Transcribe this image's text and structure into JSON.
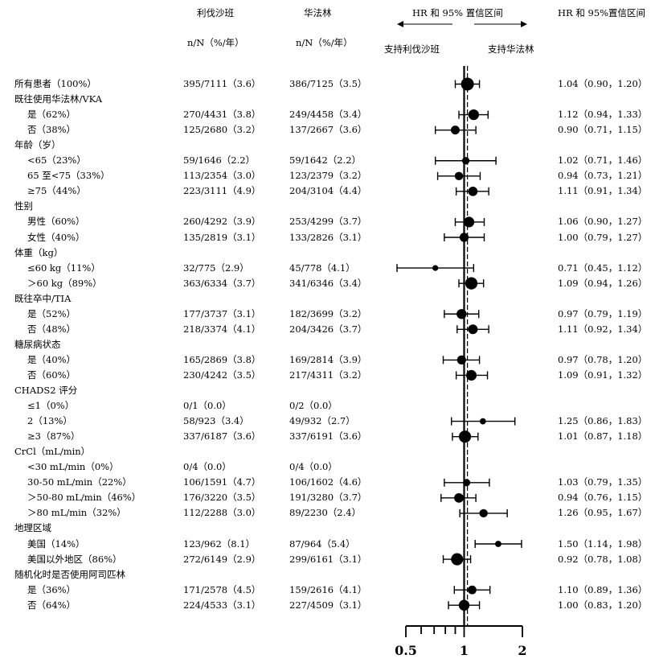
{
  "headers": {
    "rivaroxaban": "利伐沙班",
    "warfarin": "华法林",
    "nN_riva": "n/N（%/年）",
    "nN_warf": "n/N（%/年）",
    "hr_interval": "HR 和 95% 置信区间",
    "favors_riva": "支持利伐沙班",
    "favors_warf": "支持华法林",
    "hr_ci_col": "HR 和 95%置信区间"
  },
  "chart_data": {
    "type": "forest",
    "x_scale": "log",
    "xlim": [
      0.5,
      2
    ],
    "reference_value": 1,
    "overall_estimate": 1.04,
    "x_tick_labels": [
      "0.5",
      "1",
      "2"
    ],
    "rows": [
      {
        "label": "所有患者（100%）",
        "riva": "395/7111（3.6）",
        "warf": "386/7125（3.5）",
        "ci_text": "1.04（0.90，1.20）",
        "hr": 1.04,
        "lo": 0.9,
        "hi": 1.2,
        "weight": 1.0,
        "indent": false
      },
      {
        "label": "既往使用华法林/VKA",
        "indent": false
      },
      {
        "label": "是（62%）",
        "riva": "270/4431（3.8）",
        "warf": "249/4458（3.4）",
        "ci_text": "1.12（0.94，1.33）",
        "hr": 1.12,
        "lo": 0.94,
        "hi": 1.33,
        "weight": 0.62,
        "indent": true
      },
      {
        "label": "否（38%）",
        "riva": "125/2680（3.2）",
        "warf": "137/2667（3.6）",
        "ci_text": "0.90（0.71，1.15）",
        "hr": 0.9,
        "lo": 0.71,
        "hi": 1.15,
        "weight": 0.38,
        "indent": true
      },
      {
        "label": "年龄（岁）",
        "indent": false
      },
      {
        "label": "<65（23%）",
        "riva": "59/1646（2.2）",
        "warf": "59/1642（2.2）",
        "ci_text": "1.02（0.71，1.46）",
        "hr": 1.02,
        "lo": 0.71,
        "hi": 1.46,
        "weight": 0.23,
        "indent": true
      },
      {
        "label": "65 至<75（33%）",
        "riva": "113/2354（3.0）",
        "warf": "123/2379（3.2）",
        "ci_text": "0.94（0.73，1.21）",
        "hr": 0.94,
        "lo": 0.73,
        "hi": 1.21,
        "weight": 0.33,
        "indent": true
      },
      {
        "label": "≥75（44%）",
        "riva": "223/3111（4.9）",
        "warf": "204/3104（4.4）",
        "ci_text": "1.11（0.91，1.34）",
        "hr": 1.11,
        "lo": 0.91,
        "hi": 1.34,
        "weight": 0.44,
        "indent": true
      },
      {
        "label": "性别",
        "indent": false
      },
      {
        "label": "男性（60%）",
        "riva": "260/4292（3.9）",
        "warf": "253/4299（3.7）",
        "ci_text": "1.06（0.90，1.27）",
        "hr": 1.06,
        "lo": 0.9,
        "hi": 1.27,
        "weight": 0.6,
        "indent": true
      },
      {
        "label": "女性（40%）",
        "riva": "135/2819（3.1）",
        "warf": "133/2826（3.1）",
        "ci_text": "1.00（0.79，1.27）",
        "hr": 1.0,
        "lo": 0.79,
        "hi": 1.27,
        "weight": 0.4,
        "indent": true
      },
      {
        "label": "体重（kg）",
        "indent": false
      },
      {
        "label": "≤60 kg（11%）",
        "riva": "32/775（2.9）",
        "warf": "45/778（4.1）",
        "ci_text": "0.71（0.45，1.12）",
        "hr": 0.71,
        "lo": 0.45,
        "hi": 1.12,
        "weight": 0.11,
        "indent": true
      },
      {
        "label": "＞60 kg（89%）",
        "riva": "363/6334（3.7）",
        "warf": "341/6346（3.4）",
        "ci_text": "1.09（0.94，1.26）",
        "hr": 1.09,
        "lo": 0.94,
        "hi": 1.26,
        "weight": 0.89,
        "indent": true
      },
      {
        "label": "既往卒中/TIA",
        "indent": false
      },
      {
        "label": "是（52%）",
        "riva": "177/3737（3.1）",
        "warf": "182/3699（3.2）",
        "ci_text": "0.97（0.79，1.19）",
        "hr": 0.97,
        "lo": 0.79,
        "hi": 1.19,
        "weight": 0.52,
        "indent": true
      },
      {
        "label": "否（48%）",
        "riva": "218/3374（4.1）",
        "warf": "204/3426（3.7）",
        "ci_text": "1.11（0.92，1.34）",
        "hr": 1.11,
        "lo": 0.92,
        "hi": 1.34,
        "weight": 0.48,
        "indent": true
      },
      {
        "label": "糖尿病状态",
        "indent": false
      },
      {
        "label": "是（40%）",
        "riva": "165/2869（3.8）",
        "warf": "169/2814（3.9）",
        "ci_text": "0.97（0.78，1.20）",
        "hr": 0.97,
        "lo": 0.78,
        "hi": 1.2,
        "weight": 0.4,
        "indent": true
      },
      {
        "label": "否（60%）",
        "riva": "230/4242（3.5）",
        "warf": "217/4311（3.2）",
        "ci_text": "1.09（0.91，1.32）",
        "hr": 1.09,
        "lo": 0.91,
        "hi": 1.32,
        "weight": 0.6,
        "indent": true
      },
      {
        "label": "CHADS2 评分",
        "indent": false
      },
      {
        "label": "≤1（0%）",
        "riva": "0/1（0.0）",
        "warf": "0/2（0.0）",
        "indent": true
      },
      {
        "label": "2（13%）",
        "riva": "58/923（3.4）",
        "warf": "49/932（2.7）",
        "ci_text": "1.25（0.86，1.83）",
        "hr": 1.25,
        "lo": 0.86,
        "hi": 1.83,
        "weight": 0.13,
        "indent": true
      },
      {
        "label": "≥3（87%）",
        "riva": "337/6187（3.6）",
        "warf": "337/6191（3.6）",
        "ci_text": "1.01（0.87，1.18）",
        "hr": 1.01,
        "lo": 0.87,
        "hi": 1.18,
        "weight": 0.87,
        "indent": true
      },
      {
        "label": "CrCl（mL/min）",
        "indent": false
      },
      {
        "label": "<30 mL/min（0%）",
        "riva": "0/4（0.0）",
        "warf": "0/4（0.0）",
        "indent": true
      },
      {
        "label": "30-50 mL/min（22%）",
        "riva": "106/1591（4.7）",
        "warf": "106/1602（4.6）",
        "ci_text": "1.03（0.79，1.35）",
        "hr": 1.03,
        "lo": 0.79,
        "hi": 1.35,
        "weight": 0.22,
        "indent": true
      },
      {
        "label": "＞50-80 mL/min（46%）",
        "riva": "176/3220（3.5）",
        "warf": "191/3280（3.7）",
        "ci_text": "0.94（0.76，1.15）",
        "hr": 0.94,
        "lo": 0.76,
        "hi": 1.15,
        "weight": 0.46,
        "indent": true
      },
      {
        "label": "＞80 mL/min（32%）",
        "riva": "112/2288（3.0）",
        "warf": "89/2230（2.4）",
        "ci_text": "1.26（0.95，1.67）",
        "hr": 1.26,
        "lo": 0.95,
        "hi": 1.67,
        "weight": 0.32,
        "indent": true
      },
      {
        "label": "地理区域",
        "indent": false
      },
      {
        "label": "美国（14%）",
        "riva": "123/962（8.1）",
        "warf": "87/964（5.4）",
        "ci_text": "1.50（1.14，1.98）",
        "hr": 1.5,
        "lo": 1.14,
        "hi": 1.98,
        "weight": 0.14,
        "indent": true
      },
      {
        "label": "美国以外地区（86%）",
        "riva": "272/6149（2.9）",
        "warf": "299/6161（3.1）",
        "ci_text": "0.92（0.78，1.08）",
        "hr": 0.92,
        "lo": 0.78,
        "hi": 1.08,
        "weight": 0.86,
        "indent": true
      },
      {
        "label": "随机化时是否使用阿司匹林",
        "indent": false
      },
      {
        "label": "是（36%）",
        "riva": "171/2578（4.5）",
        "warf": "159/2616（4.1）",
        "ci_text": "1.10（0.89，1.36）",
        "hr": 1.1,
        "lo": 0.89,
        "hi": 1.36,
        "weight": 0.36,
        "indent": true
      },
      {
        "label": "否（64%）",
        "riva": "224/4533（3.1）",
        "warf": "227/4509（3.1）",
        "ci_text": "1.00（0.83，1.20）",
        "hr": 1.0,
        "lo": 0.83,
        "hi": 1.2,
        "weight": 0.64,
        "indent": true
      }
    ]
  }
}
